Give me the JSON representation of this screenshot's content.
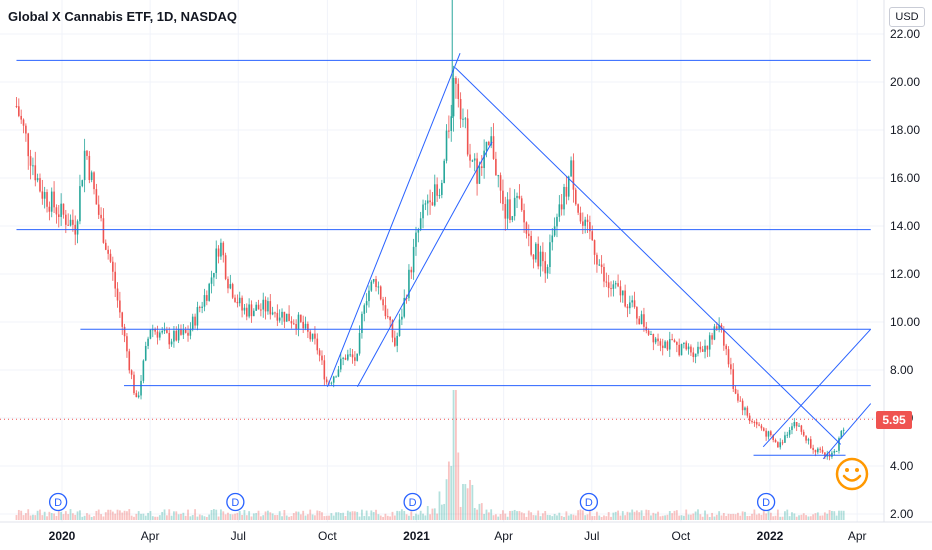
{
  "header": {
    "title": "Global X Cannabis ETF, 1D, NASDAQ",
    "currency": "USD"
  },
  "last_price": "5.95",
  "colors": {
    "up": "#26a69a",
    "down": "#ef5350",
    "trendline": "#2962ff",
    "dividend": "#2962ff",
    "accent": "#ff9800"
  },
  "dividend_marker_label": "D",
  "chart_data": {
    "type": "candlestick",
    "title": "Global X Cannabis ETF, 1D, NASDAQ",
    "y_axis_ticks": [
      "22.00",
      "20.00",
      "18.00",
      "16.00",
      "14.00",
      "12.00",
      "10.00",
      "8.00",
      "6.00",
      "4.00",
      "2.00"
    ],
    "ylim": [
      2,
      22.8
    ],
    "x_axis_ticks": [
      {
        "label": "2020",
        "bold": true,
        "date": "2020-01"
      },
      {
        "label": "Apr",
        "bold": false,
        "date": "2020-04"
      },
      {
        "label": "Jul",
        "bold": false,
        "date": "2020-07"
      },
      {
        "label": "Oct",
        "bold": false,
        "date": "2020-10"
      },
      {
        "label": "2021",
        "bold": true,
        "date": "2021-01"
      },
      {
        "label": "Apr",
        "bold": false,
        "date": "2021-04"
      },
      {
        "label": "Jul",
        "bold": false,
        "date": "2021-07"
      },
      {
        "label": "Oct",
        "bold": false,
        "date": "2021-10"
      },
      {
        "label": "2022",
        "bold": true,
        "date": "2022-01"
      },
      {
        "label": "Apr",
        "bold": false,
        "date": "2022-04"
      }
    ],
    "price_path": [
      [
        "2019-11-15",
        19.0
      ],
      [
        "2019-12-10",
        15.5
      ],
      [
        "2019-12-31",
        14.5
      ],
      [
        "2020-01-15",
        14.0
      ],
      [
        "2020-01-25",
        17.3
      ],
      [
        "2020-02-05",
        15.0
      ],
      [
        "2020-02-20",
        12.5
      ],
      [
        "2020-03-18",
        6.6
      ],
      [
        "2020-04-01",
        9.8
      ],
      [
        "2020-04-20",
        9.3
      ],
      [
        "2020-05-10",
        9.5
      ],
      [
        "2020-06-01",
        11.5
      ],
      [
        "2020-06-12",
        13.4
      ],
      [
        "2020-06-20",
        11.8
      ],
      [
        "2020-07-05",
        10.5
      ],
      [
        "2020-08-01",
        10.6
      ],
      [
        "2020-09-01",
        10.0
      ],
      [
        "2020-09-20",
        9.0
      ],
      [
        "2020-10-01",
        7.4
      ],
      [
        "2020-10-20",
        8.6
      ],
      [
        "2020-11-01",
        8.4
      ],
      [
        "2020-11-08",
        11.0
      ],
      [
        "2020-11-20",
        11.8
      ],
      [
        "2020-12-01",
        10.3
      ],
      [
        "2020-12-10",
        9.0
      ],
      [
        "2020-12-20",
        11.0
      ],
      [
        "2021-01-01",
        13.5
      ],
      [
        "2021-01-15",
        15.5
      ],
      [
        "2021-01-25",
        15.0
      ],
      [
        "2021-02-10",
        20.5
      ],
      [
        "2021-02-20",
        18.0
      ],
      [
        "2021-03-05",
        16.0
      ],
      [
        "2021-03-20",
        17.5
      ],
      [
        "2021-04-01",
        14.5
      ],
      [
        "2021-04-15",
        15.0
      ],
      [
        "2021-05-01",
        13.0
      ],
      [
        "2021-05-15",
        12.4
      ],
      [
        "2021-06-01",
        15.0
      ],
      [
        "2021-06-10",
        16.4
      ],
      [
        "2021-06-20",
        14.0
      ],
      [
        "2021-07-01",
        13.5
      ],
      [
        "2021-07-15",
        11.5
      ],
      [
        "2021-08-01",
        11.2
      ],
      [
        "2021-08-15",
        10.4
      ],
      [
        "2021-09-01",
        9.5
      ],
      [
        "2021-09-20",
        9.0
      ],
      [
        "2021-10-15",
        8.8
      ],
      [
        "2021-11-01",
        9.2
      ],
      [
        "2021-11-10",
        10.1
      ],
      [
        "2021-11-25",
        7.2
      ],
      [
        "2021-12-10",
        6.0
      ],
      [
        "2021-12-25",
        5.5
      ],
      [
        "2022-01-10",
        4.8
      ],
      [
        "2022-01-25",
        5.9
      ],
      [
        "2022-02-10",
        5.0
      ],
      [
        "2022-02-25",
        4.4
      ],
      [
        "2022-03-10",
        4.6
      ],
      [
        "2022-03-20",
        5.95
      ]
    ],
    "volume_spike": {
      "date": "2021-02-10",
      "relative": 1.0
    },
    "last_price": 5.95,
    "horizontal_levels": [
      {
        "y": 20.9,
        "from": "2019-11-15",
        "to": "2022-04-15"
      },
      {
        "y": 13.85,
        "from": "2019-11-15",
        "to": "2022-04-15"
      },
      {
        "y": 9.7,
        "from": "2020-01-20",
        "to": "2022-04-15"
      },
      {
        "y": 7.35,
        "from": "2020-03-05",
        "to": "2022-04-15"
      },
      {
        "y": 4.45,
        "from": "2021-12-15",
        "to": "2022-03-20"
      }
    ],
    "trend_lines": [
      {
        "from": [
          "2020-10-01",
          7.3
        ],
        "to": [
          "2021-02-15",
          21.2
        ]
      },
      {
        "from": [
          "2020-11-01",
          7.3
        ],
        "to": [
          "2021-03-20",
          17.5
        ]
      },
      {
        "from": [
          "2021-02-10",
          20.6
        ],
        "to": [
          "2022-03-15",
          4.9
        ]
      },
      {
        "from": [
          "2021-12-25",
          4.8
        ],
        "to": [
          "2022-04-15",
          9.7
        ]
      },
      {
        "from": [
          "2022-02-25",
          4.3
        ],
        "to": [
          "2022-04-15",
          6.6
        ]
      }
    ],
    "dividend_dates": [
      "2019-12-28",
      "2020-06-28",
      "2020-12-28",
      "2021-06-28",
      "2021-12-28"
    ]
  }
}
